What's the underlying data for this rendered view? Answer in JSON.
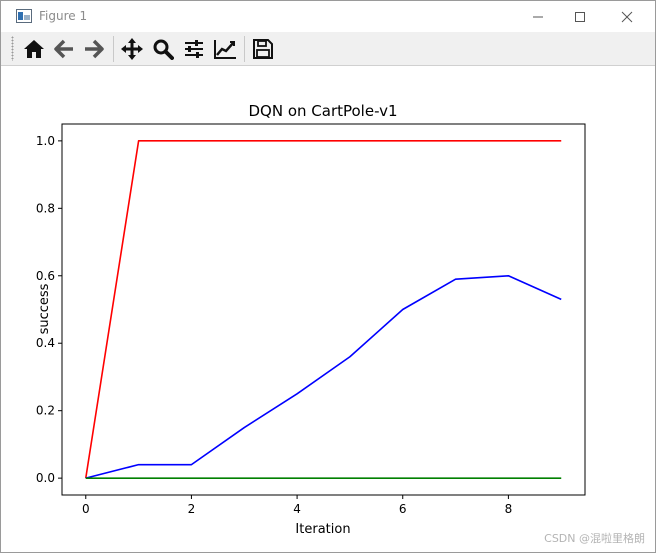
{
  "window": {
    "title": "Figure 1",
    "minimize_icon": "minimize-icon",
    "maximize_icon": "maximize-icon",
    "close_icon": "close-icon"
  },
  "toolbar": {
    "buttons": [
      {
        "icon": "home-icon"
      },
      {
        "icon": "back-arrow-icon"
      },
      {
        "icon": "forward-arrow-icon"
      },
      {
        "icon": "pan-icon"
      },
      {
        "icon": "zoom-icon"
      },
      {
        "icon": "configure-subplots-icon"
      },
      {
        "icon": "edit-axis-icon"
      },
      {
        "icon": "save-icon"
      }
    ]
  },
  "chart_data": {
    "type": "line",
    "title": "DQN on CartPole-v1",
    "xlabel": "Iteration",
    "ylabel": "success",
    "xlim": [
      -0.45,
      9.45
    ],
    "ylim": [
      -0.05,
      1.05
    ],
    "x": [
      0,
      1,
      2,
      3,
      4,
      5,
      6,
      7,
      8,
      9
    ],
    "xticks": [
      "0",
      "2",
      "4",
      "6",
      "8"
    ],
    "xtick_values": [
      0,
      2,
      4,
      6,
      8
    ],
    "yticks": [
      "0.0",
      "0.2",
      "0.4",
      "0.6",
      "0.8",
      "1.0"
    ],
    "ytick_values": [
      0.0,
      0.2,
      0.4,
      0.6,
      0.8,
      1.0
    ],
    "grid": false,
    "series": [
      {
        "color": "#ff0000",
        "values": [
          0,
          1,
          1,
          1,
          1,
          1,
          1,
          1,
          1,
          1
        ]
      },
      {
        "color": "#0000ff",
        "values": [
          0,
          0.04,
          0.04,
          0.15,
          0.25,
          0.36,
          0.5,
          0.59,
          0.6,
          0.53
        ]
      },
      {
        "color": "#008000",
        "values": [
          0,
          0,
          0,
          0,
          0,
          0,
          0,
          0,
          0,
          0
        ]
      }
    ]
  },
  "watermark": "CSDN @混啦里格朗"
}
